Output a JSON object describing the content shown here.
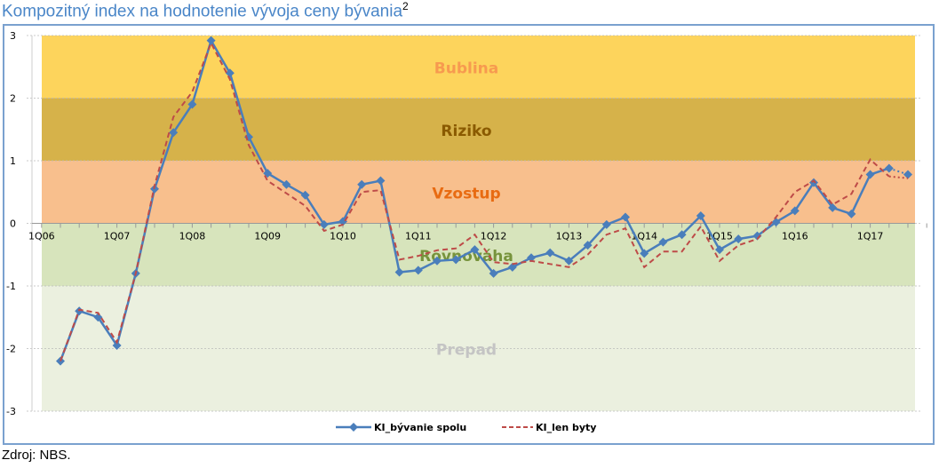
{
  "chart_data": {
    "type": "line",
    "title": "Kompozitný index na hodnotenie vývoja ceny bývania",
    "title_footnote": "2",
    "xlabel": "",
    "ylabel": "",
    "ylim": [
      -3,
      3
    ],
    "yticks": [
      "3",
      "2",
      "1",
      "0",
      "-1",
      "-2",
      "-3"
    ],
    "xtick_labels": [
      "1Q06",
      "1Q07",
      "1Q08",
      "1Q09",
      "1Q10",
      "1Q11",
      "1Q12",
      "1Q13",
      "1Q14",
      "1Q15",
      "1Q16",
      "1Q17"
    ],
    "zones": [
      {
        "label": "Bublina",
        "from": 2,
        "to": 3,
        "color": "#fdd45c",
        "text_color": "#f79a4f"
      },
      {
        "label": "Riziko",
        "from": 1,
        "to": 2,
        "color": "#d6b24a",
        "text_color": "#8a5a00"
      },
      {
        "label": "Vzostup",
        "from": 0,
        "to": 1,
        "color": "#f8bf8d",
        "text_color": "#e86b12"
      },
      {
        "label": "Rovnováha",
        "from": -1,
        "to": 0,
        "color": "#d7e4bc",
        "text_color": "#77933c"
      },
      {
        "label": "Prepad",
        "from": -3,
        "to": -1,
        "color": "#ebf0df",
        "text_color": "#c4c4c4"
      }
    ],
    "series": [
      {
        "name": "KI_bývanie spolu",
        "color": "#4a7ebb",
        "style": "solid-diamond",
        "values": [
          -2.2,
          -1.4,
          -1.5,
          -1.95,
          -0.8,
          0.55,
          1.45,
          1.9,
          2.92,
          2.4,
          1.38,
          0.8,
          0.62,
          0.45,
          -0.02,
          0.03,
          0.62,
          0.68,
          -0.78,
          -0.75,
          -0.6,
          -0.58,
          -0.42,
          -0.8,
          -0.7,
          -0.55,
          -0.47,
          -0.6,
          -0.35,
          -0.02,
          0.1,
          -0.48,
          -0.3,
          -0.18,
          0.12,
          -0.42,
          -0.25,
          -0.2,
          0.02,
          0.2,
          0.65,
          0.25,
          0.15,
          0.78,
          0.88,
          0.78
        ]
      },
      {
        "name": "KI_len byty",
        "color": "#be4b48",
        "style": "dashed",
        "values": [
          -2.2,
          -1.38,
          -1.43,
          -1.9,
          -0.8,
          0.6,
          1.7,
          2.1,
          2.88,
          2.3,
          1.25,
          0.68,
          0.48,
          0.28,
          -0.12,
          -0.02,
          0.5,
          0.53,
          -0.58,
          -0.52,
          -0.43,
          -0.4,
          -0.18,
          -0.62,
          -0.65,
          -0.6,
          -0.65,
          -0.7,
          -0.5,
          -0.18,
          -0.08,
          -0.7,
          -0.45,
          -0.45,
          -0.05,
          -0.6,
          -0.35,
          -0.25,
          0.1,
          0.5,
          0.68,
          0.3,
          0.47,
          1.02,
          0.75,
          0.72
        ]
      }
    ],
    "legend_position": "bottom"
  },
  "source": "Zdroj: NBS."
}
